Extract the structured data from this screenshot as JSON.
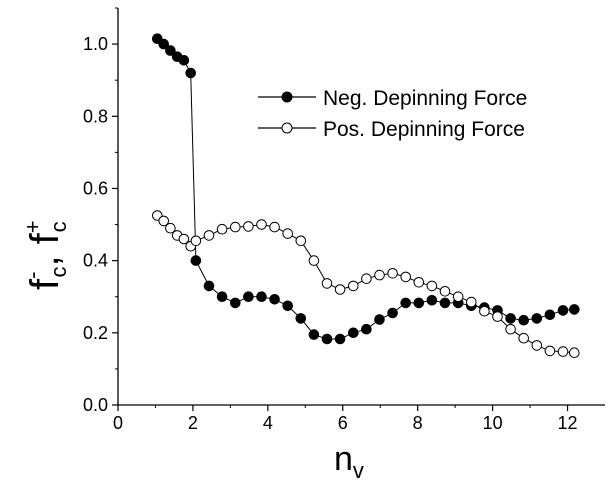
{
  "chart_data": {
    "type": "line",
    "xlabel": "n",
    "xlabel_sub": "v",
    "ylabel_parts": [
      {
        "base": "f",
        "sup": "-",
        "sub": "c"
      },
      {
        "sep": ", "
      },
      {
        "base": "f",
        "sup": "+",
        "sub": "c"
      }
    ],
    "xlim": [
      0,
      13
    ],
    "ylim": [
      0.0,
      1.1
    ],
    "xticks": [
      0,
      2,
      4,
      6,
      8,
      10,
      12
    ],
    "yticks": [
      0.0,
      0.2,
      0.4,
      0.6,
      0.8,
      1.0
    ],
    "xtick_labels": [
      "0",
      "2",
      "4",
      "6",
      "8",
      "10",
      "12"
    ],
    "ytick_labels": [
      "0.0",
      "0.2",
      "0.4",
      "0.6",
      "0.8",
      "1.0"
    ],
    "grid": false,
    "legend_position": "top-right",
    "series": [
      {
        "name": "Neg. Depinning Force",
        "marker": "filled-circle",
        "color": "#000000",
        "x": [
          1.05,
          1.22,
          1.4,
          1.58,
          1.76,
          1.94,
          2.08,
          2.43,
          2.78,
          3.13,
          3.48,
          3.83,
          4.18,
          4.53,
          4.88,
          5.23,
          5.58,
          5.93,
          6.28,
          6.63,
          6.98,
          7.33,
          7.68,
          8.03,
          8.38,
          8.73,
          9.08,
          9.43,
          9.78,
          10.13,
          10.48,
          10.83,
          11.18,
          11.53,
          11.88,
          12.18
        ],
        "y": [
          1.015,
          1.0,
          0.982,
          0.965,
          0.955,
          0.92,
          0.4,
          0.33,
          0.3,
          0.283,
          0.3,
          0.3,
          0.293,
          0.275,
          0.24,
          0.195,
          0.183,
          0.183,
          0.2,
          0.21,
          0.237,
          0.255,
          0.283,
          0.283,
          0.29,
          0.283,
          0.283,
          0.275,
          0.27,
          0.262,
          0.24,
          0.235,
          0.24,
          0.25,
          0.262,
          0.265
        ]
      },
      {
        "name": "Pos. Depinning Force",
        "marker": "open-circle",
        "color": "#000000",
        "x": [
          1.05,
          1.22,
          1.4,
          1.58,
          1.76,
          1.94,
          2.08,
          2.43,
          2.78,
          3.13,
          3.48,
          3.83,
          4.18,
          4.53,
          4.88,
          5.23,
          5.58,
          5.93,
          6.28,
          6.63,
          6.98,
          7.33,
          7.68,
          8.03,
          8.38,
          8.73,
          9.08,
          9.43,
          9.78,
          10.13,
          10.48,
          10.83,
          11.18,
          11.53,
          11.88,
          12.18
        ],
        "y": [
          0.525,
          0.51,
          0.49,
          0.47,
          0.46,
          0.44,
          0.455,
          0.47,
          0.487,
          0.493,
          0.495,
          0.5,
          0.493,
          0.475,
          0.455,
          0.4,
          0.337,
          0.32,
          0.33,
          0.35,
          0.36,
          0.365,
          0.355,
          0.34,
          0.33,
          0.315,
          0.3,
          0.285,
          0.26,
          0.245,
          0.21,
          0.185,
          0.165,
          0.15,
          0.148,
          0.145
        ]
      }
    ]
  }
}
